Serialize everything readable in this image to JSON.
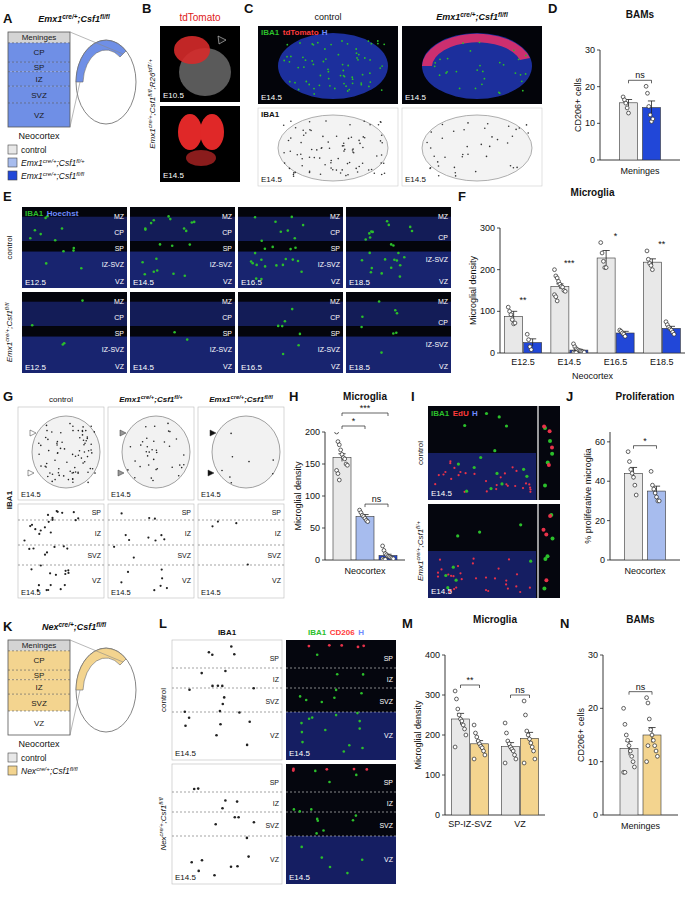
{
  "chart_data": [
    {
      "type": "bar",
      "panel": "D",
      "title": "BAMs",
      "y_label": "CD206+ cells",
      "x_label": "Meninges",
      "categories": [
        null
      ],
      "series": [
        {
          "color": "#e8e8e8",
          "values": [
            15.6
          ],
          "errors": [
            0.9
          ],
          "points": [
            [
              17.2,
              16.4,
              15.5,
              14.2,
              12.8
            ]
          ]
        },
        {
          "color": "#2147d8",
          "values": [
            14.3
          ],
          "errors": [
            1.8
          ],
          "points": [
            [
              20.1,
              18.2,
              14.6,
              12.3,
              10.5,
              11.2
            ]
          ]
        }
      ],
      "ylim": [
        0,
        30
      ],
      "yticks": [
        0,
        10,
        20,
        30
      ],
      "annotations": [
        {
          "text": "ns",
          "category": 0,
          "from": 0,
          "to": 1
        }
      ]
    },
    {
      "type": "bar",
      "panel": "F",
      "title": "Microglia",
      "y_label": "Microglial density",
      "x_label": "Neocortex",
      "categories": [
        "E12.5",
        "E14.5",
        "E16.5",
        "E18.5"
      ],
      "series": [
        {
          "color": "#e8e8e8",
          "values": [
            88,
            160,
            228,
            218
          ],
          "errors": [
            12,
            6,
            18,
            8
          ],
          "points": [
            [
              110,
              100,
              92,
              80,
              70,
              72
            ],
            [
              200,
              185,
              180,
              172,
              165,
              160,
              158,
              150,
              148,
              140,
              135,
              125
            ],
            [
              265,
              240,
              220,
              205,
              205
            ],
            [
              245,
              225,
              215,
              210,
              200
            ]
          ]
        },
        {
          "color": "#2147d8",
          "values": [
            25,
            7,
            48,
            59
          ],
          "errors": [
            9,
            2,
            4,
            5
          ],
          "points": [
            [
              45,
              32,
              15,
              8
            ],
            [
              22,
              15,
              10,
              8,
              6,
              5,
              4,
              3,
              2,
              2,
              1,
              1
            ],
            [
              55,
              52,
              48,
              45,
              40
            ],
            [
              75,
              68,
              62,
              58,
              55,
              50,
              45
            ]
          ]
        }
      ],
      "ylim": [
        0,
        300
      ],
      "yticks": [
        0,
        100,
        200,
        300
      ],
      "annotations": [
        {
          "text": "**",
          "category": 0
        },
        {
          "text": "***",
          "category": 1
        },
        {
          "text": "*",
          "category": 2
        },
        {
          "text": "**",
          "category": 3
        }
      ]
    },
    {
      "type": "bar",
      "panel": "H",
      "title": "Microglia",
      "y_label": "Microglial density",
      "x_label": "Neocortex",
      "categories": [
        null
      ],
      "series": [
        {
          "color": "#e8e8e8",
          "values": [
            160
          ],
          "errors": [
            6
          ],
          "points": [
            [
              200,
              185,
              180,
              172,
              165,
              160,
              158,
              150,
              148,
              140,
              135,
              125
            ]
          ]
        },
        {
          "color": "#a7bcee",
          "values": [
            68
          ],
          "errors": [
            3
          ],
          "points": [
            [
              78,
              74,
              70,
              68,
              65,
              62,
              60
            ]
          ]
        },
        {
          "color": "#2147d8",
          "values": [
            7
          ],
          "errors": [
            2
          ],
          "points": [
            [
              22,
              15,
              10,
              8,
              6,
              5,
              4,
              3,
              2,
              2,
              1,
              1
            ]
          ]
        }
      ],
      "ylim": [
        0,
        200
      ],
      "yticks": [
        0,
        50,
        100,
        150,
        200
      ],
      "annotations": [
        {
          "text": "*",
          "category": 0,
          "from": 0,
          "to": 1
        },
        {
          "text": "ns",
          "category": 0,
          "from": 1,
          "to": 2
        },
        {
          "text": "***",
          "category": 0,
          "from": 0,
          "to": 2
        }
      ]
    },
    {
      "type": "bar",
      "panel": "J",
      "title": "Proliferation",
      "y_label": "% proliferative microglia",
      "x_label": "Neocortex",
      "categories": [
        null
      ],
      "series": [
        {
          "color": "#e8e8e8",
          "values": [
            44
          ],
          "errors": [
            3
          ],
          "points": [
            [
              55,
              50,
              46,
              44,
              42,
              38,
              33
            ]
          ]
        },
        {
          "color": "#a7bcee",
          "values": [
            35
          ],
          "errors": [
            2.5
          ],
          "points": [
            [
              45,
              38,
              36,
              34,
              32,
              30,
              30
            ]
          ]
        }
      ],
      "ylim": [
        0,
        65
      ],
      "yticks": [
        0,
        20,
        40,
        60
      ],
      "annotations": [
        {
          "text": "*",
          "category": 0,
          "from": 0,
          "to": 1
        }
      ]
    },
    {
      "type": "bar",
      "panel": "M",
      "title": "Microglia",
      "y_label": "Microglial density",
      "categories": [
        "SP-IZ-SVZ",
        "VZ"
      ],
      "series": [
        {
          "color": "#e8e8e8",
          "values": [
            240,
            171
          ],
          "errors": [
            14,
            10
          ],
          "points": [
            [
              310,
              290,
              265,
              250,
              240,
              235,
              225,
              215,
              200,
              170
            ],
            [
              230,
              205,
              185,
              178,
              170,
              165,
              160,
              150,
              140,
              130
            ]
          ]
        },
        {
          "color": "#f3d48f",
          "values": [
            178,
            191.5
          ],
          "errors": [
            8,
            15
          ],
          "points": [
            [
              225,
              205,
              195,
              185,
              178,
              172,
              168,
              160,
              150,
              140
            ],
            [
              285,
              250,
              210,
              200,
              190,
              180,
              170,
              160,
              140,
              130
            ]
          ]
        }
      ],
      "ylim": [
        0,
        400
      ],
      "yticks": [
        0,
        100,
        200,
        300,
        400
      ],
      "annotations": [
        {
          "text": "**",
          "category": 0,
          "from": 0,
          "to": 1
        },
        {
          "text": "ns",
          "category": 1,
          "from": 0,
          "to": 1
        }
      ]
    },
    {
      "type": "bar",
      "panel": "N",
      "title": "BAMs",
      "y_label": "CD206+ cells",
      "x_label": "Meninges",
      "categories": [
        null
      ],
      "series": [
        {
          "color": "#e8e8e8",
          "values": [
            12.5
          ],
          "errors": [
            1.3
          ],
          "points": [
            [
              20,
              17,
              15,
              14,
              13,
              12,
              11,
              10,
              9,
              8,
              8
            ]
          ]
        },
        {
          "color": "#f3d48f",
          "values": [
            15
          ],
          "errors": [
            1.4
          ],
          "points": [
            [
              22,
              21,
              18,
              16,
              15,
              14,
              13,
              12,
              11,
              10,
              13
            ]
          ]
        }
      ],
      "ylim": [
        0,
        30
      ],
      "yticks": [
        0,
        10,
        20,
        30
      ],
      "annotations": [
        {
          "text": "ns",
          "category": 0,
          "from": 0,
          "to": 1
        }
      ]
    }
  ],
  "figure": {
    "A": {
      "letter": "A",
      "title": "Emx1cre/+;Csf1fl/fl",
      "layers": [
        "Meninges",
        "CP",
        "SP",
        "IZ",
        "SVZ",
        "VZ"
      ],
      "filled": [
        false,
        true,
        true,
        true,
        true,
        true
      ],
      "fill_color": "#6f8fe6",
      "region": "Neocortex",
      "legend": [
        {
          "label": "control",
          "color": "#e8e8e8"
        },
        {
          "label": "Emx1cre/+;Csf1fl/+",
          "color": "#a7bcee"
        },
        {
          "label": "Emx1cre/+;Csf1fl/fl",
          "color": "#2147d8"
        }
      ]
    },
    "B": {
      "letter": "B",
      "title": "tdTomato",
      "side_label": "Emx1cre/+;Csf1fl/fl;R26tdT/+",
      "stages": [
        "E10.5",
        "E14.5"
      ]
    },
    "C": {
      "letter": "C",
      "columns": [
        "control",
        "Emx1cre/+;Csf1fl/fl"
      ],
      "channels": [
        {
          "text": "IBA1",
          "color": "#2bbf2b"
        },
        {
          "text": "tdTomato",
          "color": "#ff3b3b"
        },
        {
          "text": "H",
          "color": "#6f8cff"
        }
      ],
      "bottom_label": "IBA1",
      "stage": "E14.5"
    },
    "E": {
      "letter": "E",
      "rows": [
        "control",
        "Emx1cre/+;Csf1fl/fl"
      ],
      "channels": [
        {
          "text": "IBA1",
          "color": "#2bbf2b"
        },
        {
          "text": "Hoechst",
          "color": "#6f8cff"
        }
      ],
      "stages": [
        "E12.5",
        "E14.5",
        "E16.5",
        "E18.5"
      ],
      "layers": [
        [
          [
            "MZ",
            "CP",
            "SP",
            "IZ-SVZ",
            "VZ"
          ],
          [
            "MZ",
            "CP",
            "SP",
            "IZ-SVZ",
            "VZ"
          ],
          [
            "MZ",
            "CP",
            "SP",
            "IZ-SVZ",
            "VZ"
          ],
          [
            "MZ",
            "CP",
            "IZ-SVZ",
            "VZ"
          ]
        ],
        [
          [
            "MZ",
            "CP",
            "SP",
            "IZ-SVZ",
            "VZ"
          ],
          [
            "MZ",
            "CP",
            "SP",
            "IZ-SVZ",
            "VZ"
          ],
          [
            "MZ",
            "CP",
            "SP",
            "IZ-SVZ",
            "VZ"
          ],
          [
            "MZ",
            "CP",
            "IZ-SVZ",
            "VZ"
          ]
        ]
      ]
    },
    "G": {
      "letter": "G",
      "columns": [
        "control",
        "Emx1cre/+;Csf1fl/+",
        "Emx1cre/+;Csf1fl/fl"
      ],
      "label": "IBA1",
      "stage": "E14.5",
      "layers": [
        "SP",
        "IZ",
        "SVZ",
        "VZ"
      ]
    },
    "I": {
      "letter": "I",
      "rows": [
        "control",
        "Emx1cre/+;Csf1fl/+"
      ],
      "channels": [
        {
          "text": "IBA1",
          "color": "#2bbf2b"
        },
        {
          "text": "EdU",
          "color": "#ff3b3b"
        },
        {
          "text": "H",
          "color": "#6f8cff"
        }
      ],
      "stage": "E14.5"
    },
    "K": {
      "letter": "K",
      "title": "Nexcre/+;Csf1fl/fl",
      "layers": [
        "Meninges",
        "CP",
        "SP",
        "IZ",
        "SVZ",
        "VZ"
      ],
      "filled": [
        false,
        true,
        true,
        true,
        true,
        false
      ],
      "fill_color": "#f3d48f",
      "region": "Neocortex",
      "legend": [
        {
          "label": "control",
          "color": "#e8e8e8"
        },
        {
          "label": "Nexcre/+;Csf1fl/fl",
          "color": "#f3d48f"
        }
      ]
    },
    "L": {
      "letter": "L",
      "rows": [
        "control",
        "Nexcre/+;Csf1fl/fl"
      ],
      "column_title": "IBA1",
      "channels": [
        {
          "text": "IBA1",
          "color": "#2bbf2b"
        },
        {
          "text": "CD206",
          "color": "#ff3b3b"
        },
        {
          "text": "H",
          "color": "#6f8cff"
        }
      ],
      "layers": [
        "SP",
        "IZ",
        "SVZ",
        "VZ"
      ],
      "stage": "E14.5"
    }
  }
}
